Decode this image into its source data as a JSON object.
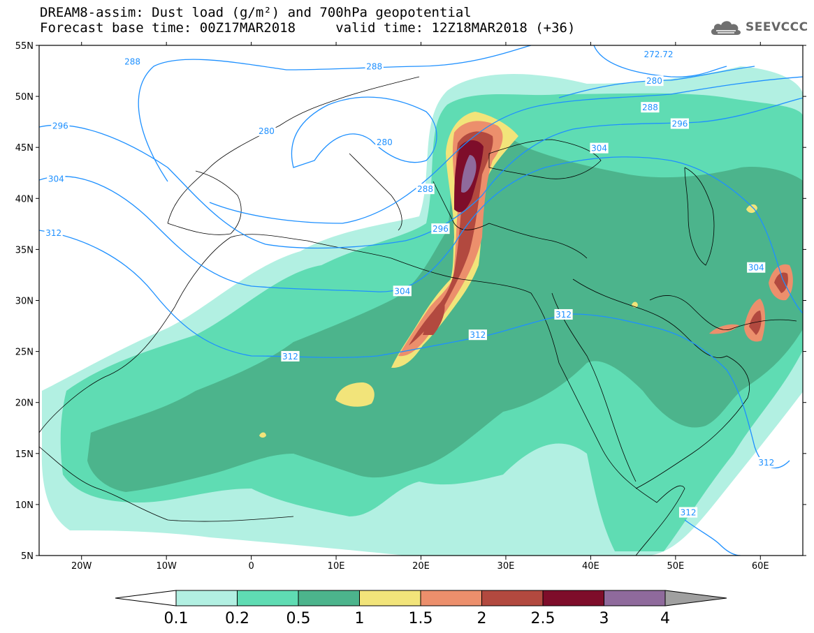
{
  "title": {
    "line1": "DREAM8-assim: Dust load (g/m²) and 700hPa geopotential",
    "line2": "Forecast base time: 00Z17MAR2018     valid time: 12Z18MAR2018 (+36)"
  },
  "logo": {
    "text": "SEEVCCC",
    "icon": "cloud-icon"
  },
  "axes": {
    "lon_min": -25,
    "lon_max": 65,
    "lat_min": 5,
    "lat_max": 55,
    "lon_ticks": [
      {
        "v": -20,
        "label": "20W"
      },
      {
        "v": -10,
        "label": "10W"
      },
      {
        "v": 0,
        "label": "0"
      },
      {
        "v": 10,
        "label": "10E"
      },
      {
        "v": 20,
        "label": "20E"
      },
      {
        "v": 30,
        "label": "30E"
      },
      {
        "v": 40,
        "label": "40E"
      },
      {
        "v": 50,
        "label": "50E"
      },
      {
        "v": 60,
        "label": "60E"
      }
    ],
    "lat_ticks": [
      {
        "v": 55,
        "label": "55N"
      },
      {
        "v": 50,
        "label": "50N"
      },
      {
        "v": 45,
        "label": "45N"
      },
      {
        "v": 40,
        "label": "40N"
      },
      {
        "v": 35,
        "label": "35N"
      },
      {
        "v": 30,
        "label": "30N"
      },
      {
        "v": 25,
        "label": "25N"
      },
      {
        "v": 20,
        "label": "20N"
      },
      {
        "v": 15,
        "label": "15N"
      },
      {
        "v": 10,
        "label": "10N"
      },
      {
        "v": 5,
        "label": "5N"
      }
    ]
  },
  "colorbar": {
    "levels": [
      "0.1",
      "0.2",
      "0.5",
      "1",
      "1.5",
      "2",
      "2.5",
      "3",
      "4"
    ],
    "colors": [
      "#b2f0e2",
      "#5fdcb3",
      "#4cb48c",
      "#f2e47a",
      "#ec8f6c",
      "#b2493f",
      "#7e0d2a",
      "#8f6a9c"
    ],
    "below_color": "#ffffff",
    "above_color": "#a0a0a0"
  },
  "contour_labels": [
    {
      "text": "288",
      "lon": -14,
      "lat": 53.4
    },
    {
      "text": "288",
      "lon": 14.5,
      "lat": 52.9
    },
    {
      "text": "272.72",
      "lon": 48,
      "lat": 54.1
    },
    {
      "text": "280",
      "lon": 47.5,
      "lat": 51.5
    },
    {
      "text": "288",
      "lon": 47,
      "lat": 48.9
    },
    {
      "text": "296",
      "lon": -22.5,
      "lat": 47.1
    },
    {
      "text": "280",
      "lon": 1.8,
      "lat": 46.6
    },
    {
      "text": "280",
      "lon": 15.7,
      "lat": 45.5
    },
    {
      "text": "296",
      "lon": 50.5,
      "lat": 47.3
    },
    {
      "text": "304",
      "lon": 41,
      "lat": 44.9
    },
    {
      "text": "304",
      "lon": -23,
      "lat": 41.9
    },
    {
      "text": "288",
      "lon": 20.5,
      "lat": 40.9
    },
    {
      "text": "312",
      "lon": -23.3,
      "lat": 36.6
    },
    {
      "text": "296",
      "lon": 22.3,
      "lat": 37.0
    },
    {
      "text": "304",
      "lon": 17.8,
      "lat": 30.9
    },
    {
      "text": "304",
      "lon": 59.5,
      "lat": 33.2
    },
    {
      "text": "312",
      "lon": 36.8,
      "lat": 28.6
    },
    {
      "text": "312",
      "lon": 26.7,
      "lat": 26.6
    },
    {
      "text": "312",
      "lon": 4.6,
      "lat": 24.5
    },
    {
      "text": "312",
      "lon": 60.7,
      "lat": 14.1
    },
    {
      "text": "312",
      "lon": 51.5,
      "lat": 9.2
    }
  ]
}
